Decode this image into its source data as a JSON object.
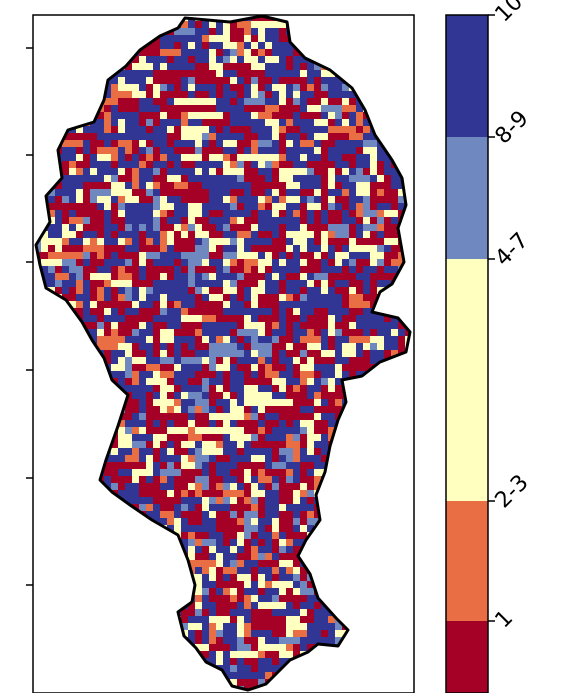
{
  "legend": {
    "classes": [
      {
        "label": "1",
        "color": "#a50026"
      },
      {
        "label": "2-3",
        "color": "#ea6e44"
      },
      {
        "label": "4-7",
        "color": "#ffffc0"
      },
      {
        "label": "8-9",
        "color": "#6f88bf"
      },
      {
        "label": "10",
        "color": "#313695"
      }
    ]
  },
  "map": {
    "region_outline_color": "#000000",
    "pattern": "randomized pixel grid of class colors clipped to region outline"
  }
}
